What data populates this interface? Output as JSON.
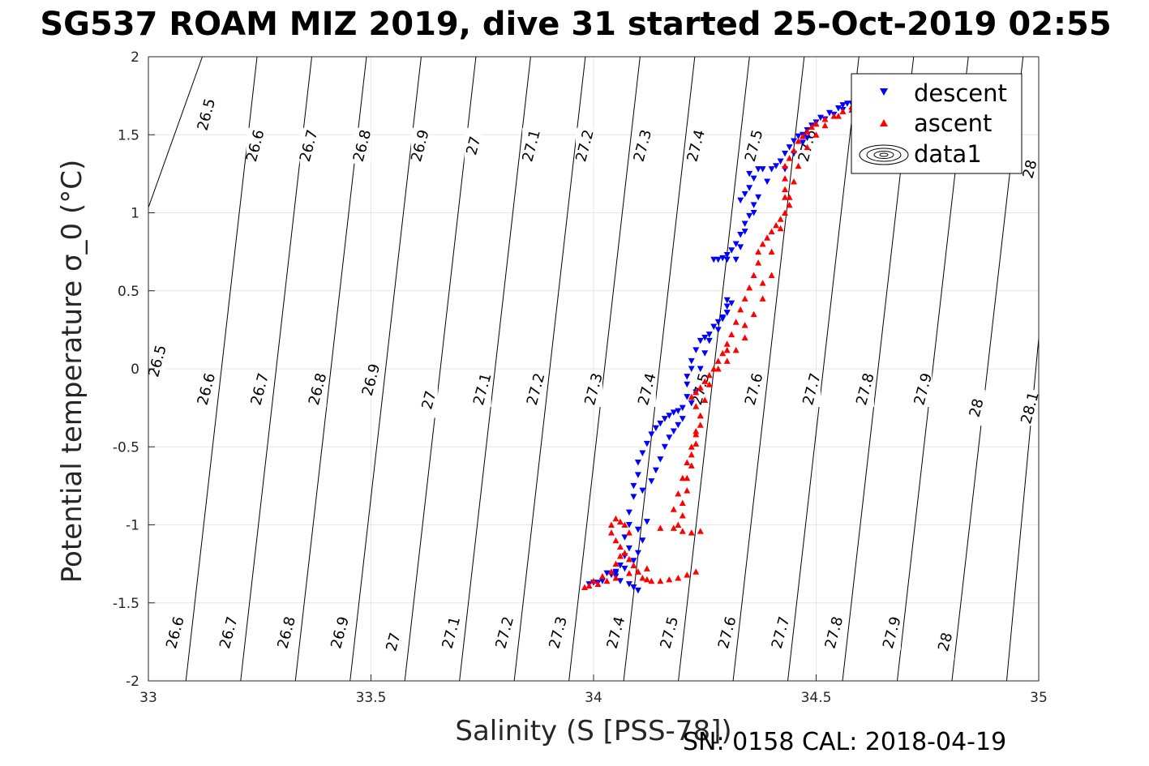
{
  "title": "SG537 ROAM MIZ 2019, dive 31 started 25-Oct-2019 02:55",
  "footer": "SN: 0158  CAL: 2018-04-19",
  "colors": {
    "descent": "#0000ff",
    "ascent": "#ff0000",
    "contour": "#000000",
    "grid": "#e6e6e6"
  },
  "chart_data": {
    "type": "scatter",
    "xlabel": "Salinity (S [PSS-78])",
    "ylabel": "Potential temperature σ_0 (°C)",
    "xlim": [
      33,
      35
    ],
    "ylim": [
      -2,
      2
    ],
    "x_ticks": [
      "33",
      "33.5",
      "34",
      "34.5",
      "35"
    ],
    "y_ticks": [
      "-2",
      "-1.5",
      "-1",
      "-0.5",
      "0",
      "0.5",
      "1",
      "1.5",
      "2"
    ],
    "grid": true,
    "legend_position": "top-right",
    "legend": [
      "descent",
      "ascent",
      "data1"
    ],
    "density_contours": [
      26.5,
      26.6,
      26.7,
      26.8,
      26.9,
      27.0,
      27.1,
      27.2,
      27.3,
      27.4,
      27.5,
      27.6,
      27.7,
      27.8,
      27.9,
      28.0,
      28.1
    ],
    "contour_labels": [
      {
        "text": "26.5",
        "s": 33.13,
        "t": 1.63
      },
      {
        "text": "26.6",
        "s": 33.24,
        "t": 1.43
      },
      {
        "text": "26.7",
        "s": 33.36,
        "t": 1.43
      },
      {
        "text": "26.8",
        "s": 33.48,
        "t": 1.43
      },
      {
        "text": "26.9",
        "s": 33.61,
        "t": 1.43
      },
      {
        "text": "27",
        "s": 33.73,
        "t": 1.43
      },
      {
        "text": "27.1",
        "s": 33.86,
        "t": 1.43
      },
      {
        "text": "27.2",
        "s": 33.98,
        "t": 1.43
      },
      {
        "text": "27.3",
        "s": 34.11,
        "t": 1.43
      },
      {
        "text": "27.4",
        "s": 34.23,
        "t": 1.43
      },
      {
        "text": "27.5",
        "s": 34.36,
        "t": 1.43
      },
      {
        "text": "27.6",
        "s": 34.48,
        "t": 1.43
      },
      {
        "text": "28",
        "s": 34.98,
        "t": 1.28
      },
      {
        "text": "26.5",
        "s": 33.02,
        "t": 0.05
      },
      {
        "text": "26.6",
        "s": 33.13,
        "t": -0.13
      },
      {
        "text": "26.7",
        "s": 33.25,
        "t": -0.13
      },
      {
        "text": "26.8",
        "s": 33.38,
        "t": -0.13
      },
      {
        "text": "26.9",
        "s": 33.5,
        "t": -0.07
      },
      {
        "text": "27",
        "s": 33.63,
        "t": -0.2
      },
      {
        "text": "27.1",
        "s": 33.75,
        "t": -0.13
      },
      {
        "text": "27.2",
        "s": 33.87,
        "t": -0.13
      },
      {
        "text": "27.3",
        "s": 34.0,
        "t": -0.13
      },
      {
        "text": "27.4",
        "s": 34.12,
        "t": -0.13
      },
      {
        "text": "27.5",
        "s": 34.24,
        "t": -0.13
      },
      {
        "text": "27.6",
        "s": 34.36,
        "t": -0.13
      },
      {
        "text": "27.7",
        "s": 34.49,
        "t": -0.13
      },
      {
        "text": "27.8",
        "s": 34.61,
        "t": -0.13
      },
      {
        "text": "27.9",
        "s": 34.74,
        "t": -0.13
      },
      {
        "text": "28",
        "s": 34.86,
        "t": -0.25
      },
      {
        "text": "28.1",
        "s": 34.98,
        "t": -0.25
      },
      {
        "text": "26.6",
        "s": 33.06,
        "t": -1.69
      },
      {
        "text": "26.7",
        "s": 33.18,
        "t": -1.69
      },
      {
        "text": "26.8",
        "s": 33.31,
        "t": -1.69
      },
      {
        "text": "26.9",
        "s": 33.43,
        "t": -1.69
      },
      {
        "text": "27",
        "s": 33.55,
        "t": -1.75
      },
      {
        "text": "27.1",
        "s": 33.68,
        "t": -1.69
      },
      {
        "text": "27.2",
        "s": 33.8,
        "t": -1.69
      },
      {
        "text": "27.3",
        "s": 33.92,
        "t": -1.69
      },
      {
        "text": "27.4",
        "s": 34.05,
        "t": -1.69
      },
      {
        "text": "27.5",
        "s": 34.17,
        "t": -1.69
      },
      {
        "text": "27.6",
        "s": 34.3,
        "t": -1.69
      },
      {
        "text": "27.7",
        "s": 34.42,
        "t": -1.69
      },
      {
        "text": "27.8",
        "s": 34.54,
        "t": -1.69
      },
      {
        "text": "27.9",
        "s": 34.67,
        "t": -1.69
      },
      {
        "text": "28",
        "s": 34.79,
        "t": -1.75
      }
    ],
    "series": [
      {
        "name": "descent",
        "marker": "triangle-down",
        "points": [
          [
            34.55,
            1.67
          ],
          [
            34.56,
            1.69
          ],
          [
            34.57,
            1.7
          ],
          [
            34.58,
            1.7
          ],
          [
            34.53,
            1.64
          ],
          [
            34.51,
            1.61
          ],
          [
            34.5,
            1.58
          ],
          [
            34.49,
            1.56
          ],
          [
            34.48,
            1.53
          ],
          [
            34.47,
            1.5
          ],
          [
            34.46,
            1.49
          ],
          [
            34.45,
            1.46
          ],
          [
            34.44,
            1.42
          ],
          [
            34.43,
            1.38
          ],
          [
            34.42,
            1.33
          ],
          [
            34.41,
            1.3
          ],
          [
            34.4,
            1.28
          ],
          [
            34.38,
            1.28
          ],
          [
            34.37,
            1.28
          ],
          [
            34.36,
            1.22
          ],
          [
            34.35,
            1.16
          ],
          [
            34.34,
            1.12
          ],
          [
            34.33,
            1.08
          ],
          [
            34.35,
            1.25
          ],
          [
            34.36,
            1.05
          ],
          [
            34.35,
            0.98
          ],
          [
            34.34,
            0.93
          ],
          [
            34.33,
            0.86
          ],
          [
            34.32,
            0.8
          ],
          [
            34.31,
            0.76
          ],
          [
            34.3,
            0.73
          ],
          [
            34.29,
            0.71
          ],
          [
            34.28,
            0.7
          ],
          [
            34.27,
            0.7
          ],
          [
            34.3,
            0.7
          ],
          [
            34.3,
            0.44
          ],
          [
            34.3,
            0.4
          ],
          [
            34.3,
            0.36
          ],
          [
            34.29,
            0.33
          ],
          [
            34.28,
            0.3
          ],
          [
            34.27,
            0.27
          ],
          [
            34.26,
            0.22
          ],
          [
            34.25,
            0.2
          ],
          [
            34.24,
            0.18
          ],
          [
            34.23,
            0.12
          ],
          [
            34.22,
            0.05
          ],
          [
            34.22,
            0.0
          ],
          [
            34.21,
            -0.05
          ],
          [
            34.21,
            -0.1
          ],
          [
            34.21,
            -0.18
          ],
          [
            34.2,
            -0.25
          ],
          [
            34.19,
            -0.27
          ],
          [
            34.18,
            -0.28
          ],
          [
            34.17,
            -0.3
          ],
          [
            34.16,
            -0.32
          ],
          [
            34.15,
            -0.35
          ],
          [
            34.14,
            -0.38
          ],
          [
            34.13,
            -0.42
          ],
          [
            34.12,
            -0.48
          ],
          [
            34.11,
            -0.54
          ],
          [
            34.1,
            -0.6
          ],
          [
            34.1,
            -0.68
          ],
          [
            34.09,
            -0.75
          ],
          [
            34.09,
            -0.82
          ],
          [
            34.08,
            -0.92
          ],
          [
            34.08,
            -1.0
          ],
          [
            34.07,
            -1.08
          ],
          [
            34.08,
            -1.15
          ],
          [
            34.07,
            -1.2
          ],
          [
            34.06,
            -1.26
          ],
          [
            34.05,
            -1.3
          ],
          [
            34.05,
            -1.33
          ],
          [
            34.06,
            -1.36
          ],
          [
            34.08,
            -1.38
          ],
          [
            34.09,
            -1.4
          ],
          [
            34.1,
            -1.42
          ],
          [
            34.05,
            -1.31
          ],
          [
            34.03,
            -1.31
          ],
          [
            34.0,
            -1.37
          ],
          [
            33.99,
            -1.38
          ],
          [
            34.01,
            -1.37
          ],
          [
            34.02,
            -1.36
          ],
          [
            34.04,
            -1.32
          ],
          [
            34.07,
            -1.28
          ],
          [
            34.09,
            -1.23
          ],
          [
            34.1,
            -1.18
          ],
          [
            34.11,
            -1.1
          ],
          [
            34.1,
            -1.03
          ],
          [
            34.12,
            -0.98
          ],
          [
            34.11,
            -0.78
          ],
          [
            34.13,
            -0.72
          ],
          [
            34.14,
            -0.65
          ],
          [
            34.15,
            -0.58
          ],
          [
            34.16,
            -0.5
          ],
          [
            34.17,
            -0.44
          ],
          [
            34.18,
            -0.4
          ],
          [
            34.19,
            -0.36
          ],
          [
            34.2,
            -0.32
          ],
          [
            34.22,
            -0.22
          ],
          [
            34.23,
            -0.15
          ],
          [
            34.24,
            0.0
          ],
          [
            34.25,
            0.1
          ],
          [
            34.26,
            0.18
          ],
          [
            34.28,
            0.25
          ],
          [
            34.29,
            0.32
          ],
          [
            34.3,
            0.36
          ],
          [
            34.31,
            0.42
          ],
          [
            34.32,
            0.7
          ],
          [
            34.33,
            0.78
          ],
          [
            34.34,
            0.88
          ],
          [
            34.36,
            1.0
          ],
          [
            34.37,
            1.1
          ],
          [
            34.39,
            1.2
          ],
          [
            34.43,
            1.28
          ],
          [
            34.45,
            1.38
          ],
          [
            34.47,
            1.45
          ],
          [
            34.48,
            1.48
          ],
          [
            34.52,
            1.6
          ],
          [
            34.54,
            1.63
          ],
          [
            34.56,
            1.66
          ]
        ]
      },
      {
        "name": "ascent",
        "marker": "triangle-up",
        "points": [
          [
            34.6,
            1.7
          ],
          [
            34.59,
            1.69
          ],
          [
            34.58,
            1.68
          ],
          [
            34.56,
            1.65
          ],
          [
            34.54,
            1.62
          ],
          [
            34.52,
            1.6
          ],
          [
            34.5,
            1.57
          ],
          [
            34.49,
            1.55
          ],
          [
            34.48,
            1.52
          ],
          [
            34.47,
            1.49
          ],
          [
            34.46,
            1.46
          ],
          [
            34.45,
            1.4
          ],
          [
            34.44,
            1.35
          ],
          [
            34.43,
            1.3
          ],
          [
            34.43,
            1.22
          ],
          [
            34.43,
            1.15
          ],
          [
            34.43,
            1.1
          ],
          [
            34.44,
            1.05
          ],
          [
            34.43,
            1.0
          ],
          [
            34.42,
            0.96
          ],
          [
            34.41,
            0.92
          ],
          [
            34.4,
            0.88
          ],
          [
            34.39,
            0.84
          ],
          [
            34.38,
            0.8
          ],
          [
            34.37,
            0.75
          ],
          [
            34.37,
            0.68
          ],
          [
            34.36,
            0.6
          ],
          [
            34.35,
            0.52
          ],
          [
            34.34,
            0.45
          ],
          [
            34.33,
            0.38
          ],
          [
            34.32,
            0.3
          ],
          [
            34.31,
            0.22
          ],
          [
            34.3,
            0.16
          ],
          [
            34.29,
            0.1
          ],
          [
            34.28,
            0.05
          ],
          [
            34.27,
            0.0
          ],
          [
            34.26,
            -0.04
          ],
          [
            34.25,
            -0.08
          ],
          [
            34.24,
            -0.12
          ],
          [
            34.23,
            -0.15
          ],
          [
            34.22,
            -0.18
          ],
          [
            34.23,
            -0.24
          ],
          [
            34.24,
            -0.3
          ],
          [
            34.24,
            -0.36
          ],
          [
            34.23,
            -0.42
          ],
          [
            34.23,
            -0.48
          ],
          [
            34.22,
            -0.55
          ],
          [
            34.22,
            -0.62
          ],
          [
            34.21,
            -0.7
          ],
          [
            34.21,
            -0.78
          ],
          [
            34.2,
            -0.86
          ],
          [
            34.2,
            -0.94
          ],
          [
            34.19,
            -1.0
          ],
          [
            34.18,
            -1.02
          ],
          [
            34.2,
            -1.04
          ],
          [
            34.22,
            -1.05
          ],
          [
            34.24,
            -1.04
          ],
          [
            34.23,
            -1.3
          ],
          [
            34.21,
            -1.32
          ],
          [
            34.19,
            -1.34
          ],
          [
            34.17,
            -1.35
          ],
          [
            34.15,
            -1.36
          ],
          [
            34.13,
            -1.36
          ],
          [
            34.12,
            -1.35
          ],
          [
            34.11,
            -1.34
          ],
          [
            34.1,
            -1.3
          ],
          [
            34.09,
            -1.26
          ],
          [
            34.08,
            -1.22
          ],
          [
            34.07,
            -1.18
          ],
          [
            34.06,
            -1.14
          ],
          [
            34.05,
            -1.1
          ],
          [
            34.04,
            -1.05
          ],
          [
            34.04,
            -1.0
          ],
          [
            34.05,
            -0.96
          ],
          [
            34.06,
            -0.98
          ],
          [
            34.07,
            -1.0
          ],
          [
            34.08,
            -1.05
          ],
          [
            34.06,
            -1.2
          ],
          [
            34.05,
            -1.25
          ],
          [
            34.04,
            -1.3
          ],
          [
            34.02,
            -1.33
          ],
          [
            34.0,
            -1.36
          ],
          [
            33.99,
            -1.39
          ],
          [
            33.98,
            -1.4
          ],
          [
            34.01,
            -1.38
          ],
          [
            34.03,
            -1.36
          ],
          [
            34.05,
            -1.34
          ],
          [
            34.08,
            -1.31
          ],
          [
            34.1,
            -1.3
          ],
          [
            34.12,
            -1.28
          ],
          [
            34.15,
            -1.02
          ],
          [
            34.18,
            -0.9
          ],
          [
            34.19,
            -0.8
          ],
          [
            34.2,
            -0.7
          ],
          [
            34.21,
            -0.6
          ],
          [
            34.22,
            -0.5
          ],
          [
            34.23,
            -0.4
          ],
          [
            34.24,
            -0.3
          ],
          [
            34.25,
            -0.2
          ],
          [
            34.26,
            -0.1
          ],
          [
            34.28,
            0.0
          ],
          [
            34.3,
            0.05
          ],
          [
            34.32,
            0.12
          ],
          [
            34.34,
            0.2
          ],
          [
            34.36,
            0.35
          ],
          [
            34.38,
            0.55
          ],
          [
            34.4,
            0.75
          ],
          [
            34.42,
            0.9
          ],
          [
            34.44,
            1.1
          ],
          [
            34.45,
            1.2
          ],
          [
            34.46,
            1.3
          ],
          [
            34.48,
            1.42
          ],
          [
            34.5,
            1.5
          ],
          [
            34.52,
            1.56
          ],
          [
            34.55,
            1.62
          ],
          [
            34.58,
            1.66
          ],
          [
            34.4,
            0.6
          ],
          [
            34.38,
            0.45
          ],
          [
            34.34,
            0.28
          ],
          [
            34.3,
            0.12
          ]
        ]
      }
    ]
  }
}
